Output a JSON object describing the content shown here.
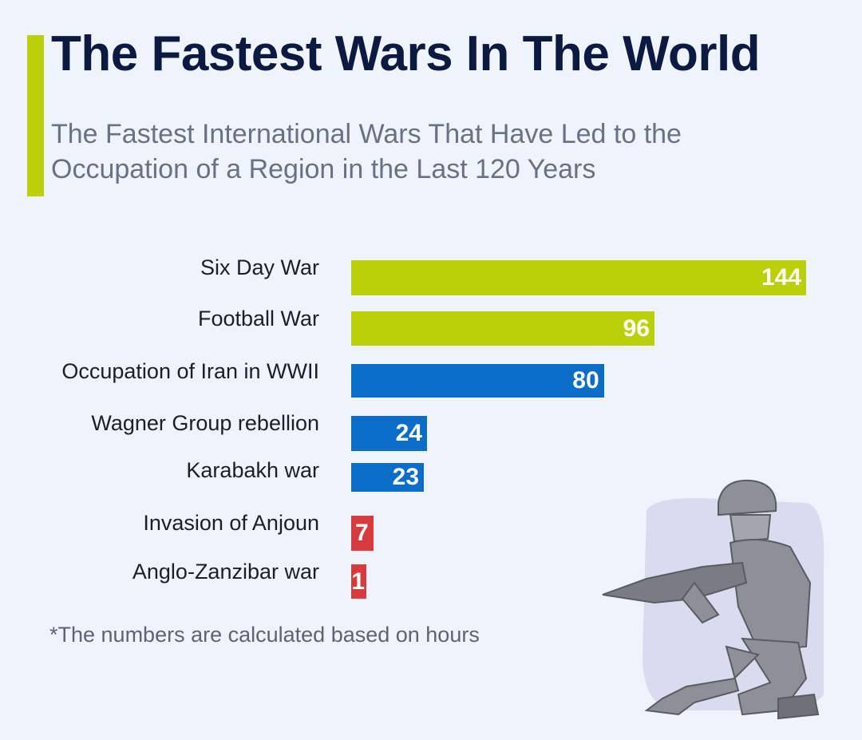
{
  "header": {
    "title": "The Fastest Wars In The World",
    "subtitle": "The Fastest International Wars That Have Led to the Occupation of a Region in the Last 120 Years"
  },
  "chart_data": {
    "type": "bar",
    "orientation": "horizontal",
    "title": "The Fastest Wars In The World",
    "categories": [
      "Six Day War",
      "Football War",
      "Occupation of Iran in WWII",
      "Wagner Group rebellion",
      "Karabakh war",
      "Invasion of Anjoun",
      "Anglo-Zanzibar war"
    ],
    "values": [
      144,
      96,
      80,
      24,
      23,
      7,
      1
    ],
    "value_labels": [
      "144",
      "96",
      "80",
      "24",
      "23",
      "7",
      "1"
    ],
    "colors": [
      "#bcd00a",
      "#bcd00a",
      "#0a6ec9",
      "#0a6ec9",
      "#0a6ec9",
      "#d83b3b",
      "#d83b3b"
    ],
    "unit": "hours",
    "xlabel": "",
    "ylabel": "",
    "grid": false
  },
  "footnote": "*The numbers are calculated based on hours",
  "illustration": "soldier-icon"
}
